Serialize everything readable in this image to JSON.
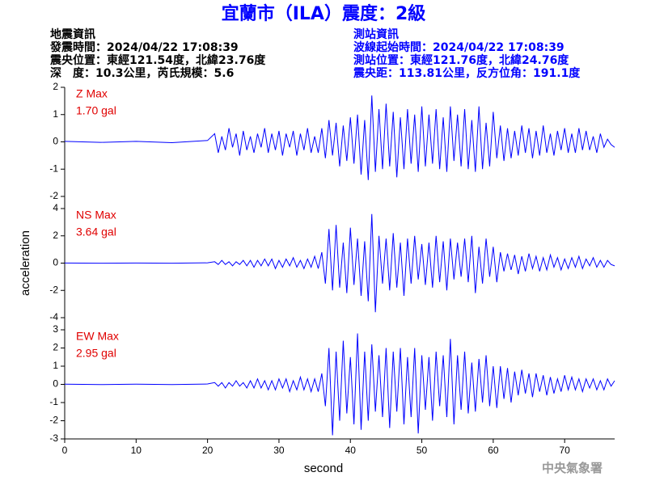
{
  "title": "宜蘭市（ILA）震度：2級",
  "header": {
    "left": [
      "地震資訊",
      "發震時間：2024/04/22 17:08:39",
      "震央位置：東經121.54度，北緯23.76度",
      "深　度：10.3公里，芮氏規模：5.6"
    ],
    "right": [
      "測站資訊",
      "波線起始時間：2024/04/22 17:08:39",
      "測站位置：東經121.76度，北緯24.76度",
      "震央距：113.81公里，反方位角：191.1度"
    ]
  },
  "footer": "中央氣象署",
  "chart_data": [
    {
      "type": "line",
      "color": "#0000ff",
      "annotations": [
        "Z Max",
        "1.70 gal"
      ],
      "xlim": [
        0,
        77
      ],
      "ylim": [
        -2,
        2
      ],
      "yticks": [
        -2,
        -1,
        0,
        1,
        2
      ],
      "x": [
        0,
        5,
        10,
        15,
        20,
        21,
        21.5,
        22,
        22.5,
        23,
        23.5,
        24,
        24.5,
        25,
        25.5,
        26,
        26.5,
        27,
        27.5,
        28,
        28.5,
        29,
        29.5,
        30,
        30.5,
        31,
        31.5,
        32,
        32.5,
        33,
        33.5,
        34,
        34.5,
        35,
        35.5,
        36,
        36.5,
        37,
        37.5,
        38,
        38.5,
        39,
        39.5,
        40,
        40.5,
        41,
        41.5,
        42,
        42.5,
        43,
        43.5,
        44,
        44.5,
        45,
        45.5,
        46,
        46.5,
        47,
        47.5,
        48,
        48.5,
        49,
        49.5,
        50,
        50.5,
        51,
        51.5,
        52,
        52.5,
        53,
        53.5,
        54,
        54.5,
        55,
        55.5,
        56,
        56.5,
        57,
        57.5,
        58,
        58.5,
        59,
        59.5,
        60,
        60.5,
        61,
        61.5,
        62,
        62.5,
        63,
        63.5,
        64,
        64.5,
        65,
        65.5,
        66,
        66.5,
        67,
        67.5,
        68,
        68.5,
        69,
        69.5,
        70,
        70.5,
        71,
        71.5,
        72,
        72.5,
        73,
        73.5,
        74,
        74.5,
        75,
        75.5,
        76,
        76.5,
        77
      ],
      "values": [
        0.02,
        -0.02,
        0.02,
        -0.03,
        0.05,
        0.3,
        -0.4,
        0.2,
        -0.3,
        0.5,
        -0.2,
        0.3,
        -0.5,
        0.4,
        -0.3,
        0.2,
        -0.4,
        0.3,
        -0.2,
        0.5,
        -0.4,
        0.3,
        -0.3,
        0.4,
        -0.5,
        0.3,
        -0.2,
        0.4,
        -0.5,
        0.3,
        -0.3,
        0.5,
        -0.4,
        0.2,
        -0.4,
        0.5,
        -0.6,
        0.8,
        -0.5,
        0.7,
        -0.9,
        0.6,
        -0.7,
        0.9,
        -0.8,
        1.0,
        -1.2,
        0.8,
        -1.4,
        1.7,
        -1.1,
        1.2,
        -1.0,
        1.4,
        -0.9,
        1.1,
        -1.3,
        0.9,
        -1.0,
        1.2,
        -0.8,
        1.0,
        -1.1,
        1.3,
        -0.9,
        1.0,
        -0.8,
        1.2,
        -1.0,
        0.9,
        -1.1,
        1.3,
        -0.7,
        1.0,
        -0.9,
        1.2,
        -1.0,
        0.8,
        -1.1,
        1.3,
        -1.0,
        0.7,
        -0.9,
        1.1,
        -0.6,
        0.6,
        -0.7,
        0.5,
        -0.6,
        0.4,
        -0.5,
        0.6,
        -0.4,
        0.5,
        -0.6,
        0.4,
        -0.5,
        0.6,
        -0.4,
        0.3,
        -0.5,
        0.4,
        -0.3,
        0.5,
        -0.4,
        0.3,
        -0.4,
        0.5,
        -0.3,
        0.4,
        -0.3,
        0.2,
        -0.4,
        0.3,
        -0.2,
        0.1,
        -0.1,
        -0.2
      ]
    },
    {
      "type": "line",
      "color": "#0000ff",
      "annotations": [
        "NS Max",
        "3.64 gal"
      ],
      "ylabel": "acceleration",
      "xlim": [
        0,
        77
      ],
      "ylim": [
        -4,
        4
      ],
      "yticks": [
        -4,
        -2,
        0,
        2,
        4
      ],
      "x": [
        0,
        5,
        10,
        15,
        20,
        21,
        21.5,
        22,
        22.5,
        23,
        23.5,
        24,
        24.5,
        25,
        25.5,
        26,
        26.5,
        27,
        27.5,
        28,
        28.5,
        29,
        29.5,
        30,
        30.5,
        31,
        31.5,
        32,
        32.5,
        33,
        33.5,
        34,
        34.5,
        35,
        35.5,
        36,
        36.5,
        37,
        37.5,
        38,
        38.5,
        39,
        39.5,
        40,
        40.5,
        41,
        41.5,
        42,
        42.5,
        43,
        43.5,
        44,
        44.5,
        45,
        45.5,
        46,
        46.5,
        47,
        47.5,
        48,
        48.5,
        49,
        49.5,
        50,
        50.5,
        51,
        51.5,
        52,
        52.5,
        53,
        53.5,
        54,
        54.5,
        55,
        55.5,
        56,
        56.5,
        57,
        57.5,
        58,
        58.5,
        59,
        59.5,
        60,
        60.5,
        61,
        61.5,
        62,
        62.5,
        63,
        63.5,
        64,
        64.5,
        65,
        65.5,
        66,
        66.5,
        67,
        67.5,
        68,
        68.5,
        69,
        69.5,
        70,
        70.5,
        71,
        71.5,
        72,
        72.5,
        73,
        73.5,
        74,
        74.5,
        75,
        75.5,
        76,
        76.5,
        77
      ],
      "values": [
        0.01,
        -0.01,
        0.01,
        -0.01,
        0.02,
        0.1,
        -0.1,
        0.2,
        -0.1,
        0.1,
        -0.2,
        0.1,
        -0.1,
        0.2,
        -0.2,
        0.2,
        -0.3,
        0.2,
        -0.2,
        0.3,
        -0.2,
        0.3,
        -0.4,
        0.2,
        -0.3,
        0.3,
        -0.2,
        0.4,
        -0.3,
        0.2,
        -0.4,
        0.3,
        -0.3,
        0.5,
        -0.4,
        0.8,
        -1.5,
        2.5,
        -2.0,
        2.8,
        -1.8,
        1.5,
        -2.2,
        2.6,
        -1.6,
        1.8,
        -2.4,
        1.6,
        -2.8,
        3.6,
        -3.6,
        2.0,
        -1.5,
        1.8,
        -2.0,
        2.2,
        -1.8,
        1.5,
        -2.4,
        1.8,
        -1.5,
        2.0,
        -1.2,
        1.4,
        -1.6,
        1.5,
        -1.8,
        2.0,
        -1.4,
        1.6,
        -2.0,
        1.8,
        -1.2,
        1.5,
        -1.0,
        1.8,
        -1.4,
        2.0,
        -2.2,
        1.2,
        -1.5,
        1.8,
        -1.0,
        1.2,
        -1.4,
        0.8,
        -0.6,
        0.7,
        -0.5,
        0.6,
        -0.8,
        0.5,
        -0.6,
        0.7,
        -0.4,
        0.5,
        -0.6,
        0.4,
        -0.5,
        0.6,
        -0.3,
        0.4,
        -0.5,
        0.3,
        -0.4,
        0.4,
        -0.3,
        0.5,
        -0.4,
        0.3,
        -0.2,
        0.4,
        -0.3,
        0.2,
        -0.3,
        0.2,
        -0.1,
        -0.2
      ]
    },
    {
      "type": "line",
      "color": "#0000ff",
      "annotations": [
        "EW Max",
        "2.95 gal"
      ],
      "xlabel": "second",
      "xlim": [
        0,
        77
      ],
      "xticks": [
        0,
        10,
        20,
        30,
        40,
        50,
        60,
        70
      ],
      "ylim": [
        -3,
        3
      ],
      "yticks": [
        -3,
        -2,
        -1,
        0,
        1,
        2,
        3
      ],
      "x": [
        0,
        5,
        10,
        15,
        20,
        21,
        21.5,
        22,
        22.5,
        23,
        23.5,
        24,
        24.5,
        25,
        25.5,
        26,
        26.5,
        27,
        27.5,
        28,
        28.5,
        29,
        29.5,
        30,
        30.5,
        31,
        31.5,
        32,
        32.5,
        33,
        33.5,
        34,
        34.5,
        35,
        35.5,
        36,
        36.5,
        37,
        37.5,
        38,
        38.5,
        39,
        39.5,
        40,
        40.5,
        41,
        41.5,
        42,
        42.5,
        43,
        43.5,
        44,
        44.5,
        45,
        45.5,
        46,
        46.5,
        47,
        47.5,
        48,
        48.5,
        49,
        49.5,
        50,
        50.5,
        51,
        51.5,
        52,
        52.5,
        53,
        53.5,
        54,
        54.5,
        55,
        55.5,
        56,
        56.5,
        57,
        57.5,
        58,
        58.5,
        59,
        59.5,
        60,
        60.5,
        61,
        61.5,
        62,
        62.5,
        63,
        63.5,
        64,
        64.5,
        65,
        65.5,
        66,
        66.5,
        67,
        67.5,
        68,
        68.5,
        69,
        69.5,
        70,
        70.5,
        71,
        71.5,
        72,
        72.5,
        73,
        73.5,
        74,
        74.5,
        75,
        75.5,
        76,
        76.5,
        77
      ],
      "values": [
        0.01,
        -0.01,
        0.01,
        -0.01,
        0.02,
        0.1,
        -0.1,
        0.1,
        -0.2,
        0.1,
        -0.1,
        0.2,
        -0.1,
        0.1,
        -0.2,
        0.2,
        -0.2,
        0.3,
        -0.2,
        0.2,
        -0.3,
        0.2,
        -0.3,
        0.3,
        -0.2,
        0.3,
        -0.4,
        0.2,
        -0.3,
        0.4,
        -0.3,
        0.3,
        -0.4,
        0.3,
        -0.4,
        0.6,
        -1.2,
        2.0,
        -2.8,
        1.8,
        -2.0,
        2.4,
        -1.6,
        1.5,
        -2.2,
        2.8,
        -2.5,
        1.8,
        -2.0,
        2.2,
        -1.5,
        1.6,
        -1.8,
        2.0,
        -2.4,
        1.8,
        -1.5,
        2.0,
        -2.2,
        1.5,
        -1.8,
        2.0,
        -2.7,
        1.6,
        -1.4,
        1.5,
        -2.0,
        1.8,
        -1.2,
        1.6,
        -1.8,
        2.5,
        -2.2,
        1.6,
        -1.4,
        1.8,
        -1.6,
        1.2,
        -1.5,
        1.4,
        -1.0,
        1.6,
        -1.2,
        1.0,
        -1.3,
        1.0,
        -0.8,
        0.9,
        -1.0,
        0.7,
        -0.6,
        0.8,
        -0.5,
        0.6,
        -0.7,
        0.6,
        -0.4,
        0.5,
        -0.6,
        0.4,
        -0.5,
        0.3,
        -0.4,
        0.5,
        -0.3,
        0.4,
        -0.3,
        0.3,
        -0.4,
        0.3,
        -0.2,
        0.3,
        -0.3,
        0.2,
        -0.3,
        0.3,
        -0.1,
        0.2
      ]
    }
  ]
}
